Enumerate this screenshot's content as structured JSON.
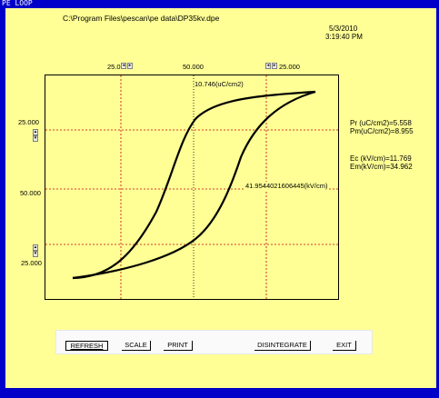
{
  "window": {
    "title": "PE LOOP"
  },
  "header": {
    "file_path": "C:\\Program Files\\pescan\\pe data\\DP35kv.dpe",
    "date": "5/3/2010",
    "time": "3:19:40 PM"
  },
  "x_axis": {
    "left_value": "25.0",
    "center_value": "50.000",
    "right_value": "25.000"
  },
  "y_axis": {
    "upper_value": "25.000",
    "center_value": "50.000",
    "lower_value": "25.000"
  },
  "plot": {
    "polarization_readout": "10.746(uC/cm2)",
    "field_readout": "41.9544021606445(kV/cm)",
    "curve_color": "#000000",
    "grid_color": "#c80000"
  },
  "stats": {
    "pr": "Pr (uC/cm2)=5.558",
    "pm": "Pm(uC/cm2)=8.955",
    "ec": "Ec (kV/cm)=11.769",
    "em": "Em(kV/cm)=34.962"
  },
  "buttons": {
    "refresh": "REFRESH",
    "scale": "SCALE",
    "print": "PRINT",
    "disintegrate": "DISINTEGRATE",
    "exit": "EXIT"
  },
  "icons": {
    "spin_left": "arrow-left-icon",
    "spin_right": "arrow-right-icon",
    "spin_up": "arrow-up-icon",
    "spin_down": "arrow-down-icon"
  }
}
